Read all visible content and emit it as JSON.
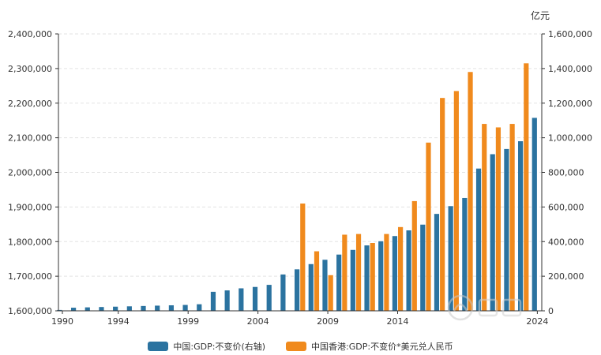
{
  "chart_data": {
    "type": "bar",
    "title": "",
    "right_axis_unit": "亿元",
    "left_axis": {
      "ylim": [
        1600000,
        2400000
      ],
      "ticks": [
        "1,600,000",
        "1,700,000",
        "1,800,000",
        "1,900,000",
        "2,000,000",
        "2,100,000",
        "2,200,000",
        "2,300,000",
        "2,400,000"
      ]
    },
    "right_axis": {
      "ylim": [
        0,
        1600000
      ],
      "ticks": [
        "0",
        "200,000",
        "400,000",
        "600,000",
        "800,000",
        "1,000,000",
        "1,200,000",
        "1,400,000",
        "1,600,000"
      ]
    },
    "x_ticks": [
      "1990",
      "1994",
      "1999",
      "2004",
      "2009",
      "2014",
      "2024"
    ],
    "x": [
      1990,
      1991,
      1992,
      1993,
      1994,
      1995,
      1996,
      1997,
      1998,
      1999,
      2000,
      2001,
      2002,
      2003,
      2004,
      2005,
      2006,
      2007,
      2008,
      2009,
      2010,
      2011,
      2012,
      2013,
      2014,
      2015,
      2016,
      2017,
      2018,
      2019,
      2020,
      2021,
      2022,
      2023,
      2024
    ],
    "series": [
      {
        "name": "中国:GDP:不变价(右轴)",
        "color": "#2b73a0",
        "axis": "right",
        "values": [
          5000,
          18000,
          20000,
          22000,
          24000,
          26000,
          28000,
          30000,
          32000,
          34000,
          38000,
          110000,
          118000,
          130000,
          138000,
          150000,
          210000,
          240000,
          270000,
          295000,
          325000,
          352000,
          378000,
          402000,
          432000,
          465000,
          498000,
          560000,
          605000,
          652000,
          822000,
          905000,
          935000,
          980000,
          1115000
        ]
      },
      {
        "name": "中国香港:GDP:不变价*美元兑人民币",
        "color": "#f08a1d",
        "axis": "left",
        "values": [
          null,
          null,
          null,
          null,
          null,
          null,
          null,
          null,
          null,
          null,
          null,
          null,
          null,
          null,
          null,
          null,
          null,
          1910000,
          1772000,
          1703000,
          1820000,
          1822000,
          1796000,
          1822000,
          1842000,
          1917000,
          2086000,
          2215000,
          2235000,
          2290000,
          2140000,
          2130000,
          2140000,
          2315000,
          null
        ]
      }
    ]
  },
  "watermark_icon": "brand-logo-watermark"
}
